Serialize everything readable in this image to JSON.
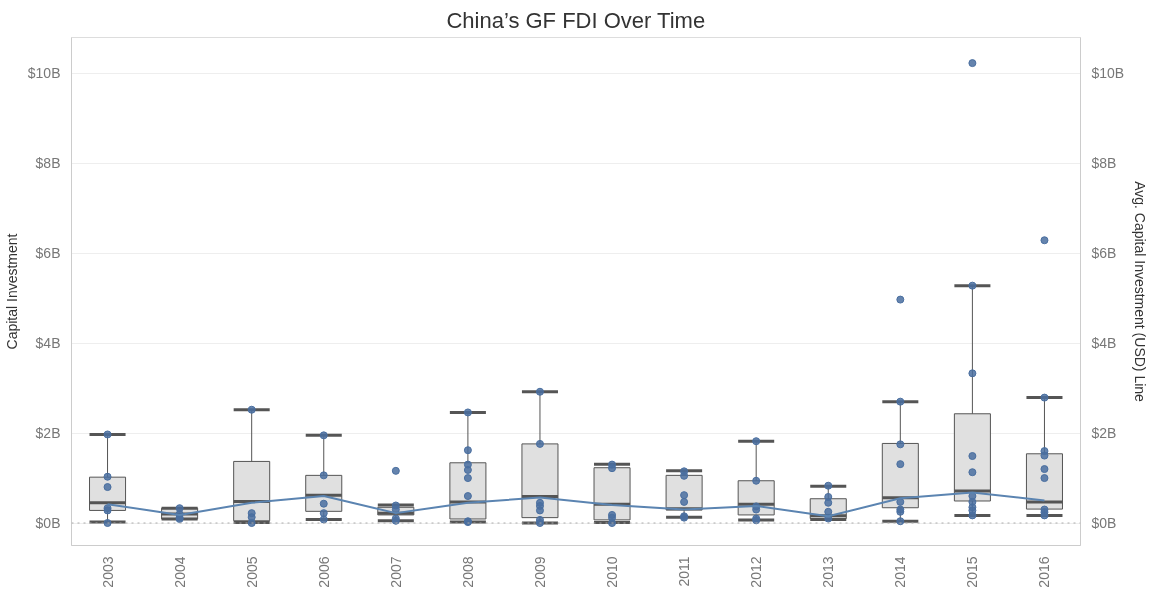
{
  "chart_data": {
    "type": "box",
    "title": "China’s GF FDI Over Time",
    "ylabel": "Capital Investment",
    "y2label": "Avg. Capital Investment (USD) Line",
    "x": [
      2003,
      2004,
      2005,
      2006,
      2007,
      2008,
      2009,
      2010,
      2011,
      2012,
      2013,
      2014,
      2015,
      2016
    ],
    "xlim": [
      2002.5,
      2016.5
    ],
    "xticks": [
      2003,
      2004,
      2005,
      2006,
      2007,
      2008,
      2009,
      2010,
      2011,
      2012,
      2013,
      2014,
      2015,
      2016
    ],
    "color": "#e0e0e0",
    "boxes": [
      {
        "low": 0.02,
        "q1": 0.28,
        "median": 0.45,
        "q3": 1.02,
        "high": 1.97
      },
      {
        "low": 0.09,
        "q1": 0.09,
        "median": 0.2,
        "q3": 0.33,
        "high": 0.33
      },
      {
        "low": 0.01,
        "q1": 0.05,
        "median": 0.48,
        "q3": 1.37,
        "high": 2.52
      },
      {
        "low": 0.08,
        "q1": 0.26,
        "median": 0.62,
        "q3": 1.06,
        "high": 1.95
      },
      {
        "low": 0.05,
        "q1": 0.18,
        "median": 0.22,
        "q3": 0.35,
        "high": 0.4
      },
      {
        "low": 0.02,
        "q1": 0.09,
        "median": 0.47,
        "q3": 1.34,
        "high": 2.46
      },
      {
        "low": 0.0,
        "q1": 0.12,
        "median": 0.59,
        "q3": 1.76,
        "high": 2.92
      },
      {
        "low": 0.01,
        "q1": 0.07,
        "median": 0.42,
        "q3": 1.23,
        "high": 1.31
      },
      {
        "low": 0.13,
        "q1": 0.29,
        "median": 0.32,
        "q3": 1.06,
        "high": 1.16
      },
      {
        "low": 0.07,
        "q1": 0.18,
        "median": 0.42,
        "q3": 0.94,
        "high": 1.82
      },
      {
        "low": 0.08,
        "q1": 0.1,
        "median": 0.16,
        "q3": 0.54,
        "high": 0.82
      },
      {
        "low": 0.04,
        "q1": 0.34,
        "median": 0.56,
        "q3": 1.77,
        "high": 2.7
      },
      {
        "low": 0.17,
        "q1": 0.49,
        "median": 0.71,
        "q3": 2.43,
        "high": 5.28
      },
      {
        "low": 0.17,
        "q1": 0.31,
        "median": 0.47,
        "q3": 1.54,
        "high": 2.79
      }
    ],
    "series": [
      {
        "type": "scatter",
        "marker": "circle",
        "color": "#4a6fa0",
        "x": [
          2003,
          2003,
          2003,
          2003,
          2003,
          2003,
          2004,
          2004,
          2004,
          2004,
          2005,
          2005,
          2005,
          2005,
          2006,
          2006,
          2006,
          2006,
          2006,
          2007,
          2007,
          2007,
          2007,
          2007,
          2008,
          2008,
          2008,
          2008,
          2008,
          2008,
          2008,
          2008,
          2009,
          2009,
          2009,
          2009,
          2009,
          2009,
          2009,
          2010,
          2010,
          2010,
          2010,
          2010,
          2011,
          2011,
          2011,
          2011,
          2011,
          2011,
          2012,
          2012,
          2012,
          2012,
          2012,
          2012,
          2013,
          2013,
          2013,
          2013,
          2013,
          2014,
          2014,
          2014,
          2014,
          2014,
          2014,
          2014,
          2014,
          2015,
          2015,
          2015,
          2015,
          2015,
          2015,
          2015,
          2015,
          2015,
          2015,
          2016,
          2016,
          2016,
          2016,
          2016,
          2016,
          2016,
          2016,
          2016
        ],
        "values": [
          1.97,
          1.03,
          0.8,
          0.33,
          0.28,
          0.0,
          0.33,
          0.2,
          0.12,
          0.09,
          2.52,
          0.22,
          0.13,
          0.0,
          1.95,
          1.06,
          0.43,
          0.22,
          0.08,
          1.16,
          0.39,
          0.3,
          0.1,
          0.05,
          2.46,
          1.62,
          1.3,
          1.18,
          1.0,
          0.6,
          0.04,
          0.02,
          2.92,
          1.76,
          0.45,
          0.38,
          0.28,
          0.07,
          0.0,
          1.3,
          1.22,
          0.18,
          0.12,
          0.0,
          1.15,
          1.05,
          0.62,
          0.47,
          0.15,
          0.12,
          1.82,
          0.94,
          0.37,
          0.3,
          0.1,
          0.06,
          0.83,
          0.58,
          0.45,
          0.25,
          0.1,
          4.97,
          2.7,
          1.75,
          1.31,
          0.47,
          0.3,
          0.25,
          0.04,
          10.23,
          5.28,
          3.33,
          1.49,
          1.13,
          0.6,
          0.47,
          0.35,
          0.28,
          0.17,
          6.29,
          2.79,
          1.6,
          1.5,
          1.2,
          1.0,
          0.3,
          0.24,
          0.17
        ]
      },
      {
        "type": "line",
        "axis": "y2",
        "color": "#5b84b1",
        "values": [
          0.42,
          0.18,
          0.45,
          0.6,
          0.22,
          0.45,
          0.57,
          0.4,
          0.3,
          0.38,
          0.15,
          0.55,
          0.68,
          0.5
        ]
      }
    ],
    "ylim": [
      -0.5,
      10.8
    ],
    "yticks": [
      {
        "value": 0,
        "label": "$0B"
      },
      {
        "value": 2,
        "label": "$2B"
      },
      {
        "value": 4,
        "label": "$4B"
      },
      {
        "value": 6,
        "label": "$6B"
      },
      {
        "value": 8,
        "label": "$8B"
      },
      {
        "value": 10,
        "label": "$10B"
      }
    ],
    "y2lim": [
      -0.5,
      10.8
    ],
    "y2ticks": [
      {
        "value": 0,
        "label": "$0B"
      },
      {
        "value": 2,
        "label": "$2B"
      },
      {
        "value": 4,
        "label": "$4B"
      },
      {
        "value": 6,
        "label": "$6B"
      },
      {
        "value": 8,
        "label": "$8B"
      },
      {
        "value": 10,
        "label": "$10B"
      }
    ],
    "ref_lines": [
      {
        "axis": "y",
        "value": 0,
        "color": "#aaaaaa",
        "line_style": "dotted"
      }
    ],
    "grid": "y"
  }
}
